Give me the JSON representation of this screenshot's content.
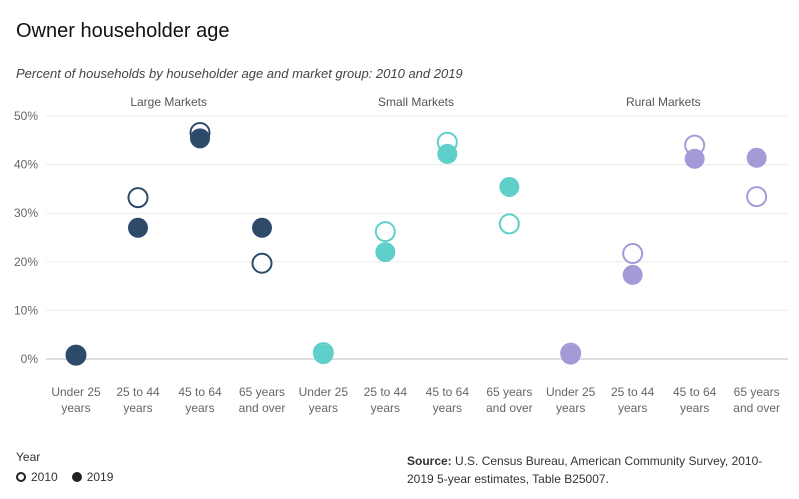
{
  "title": "Owner householder age",
  "subtitle": "Percent of households by householder age and market group: 2010 and 2019",
  "legend": {
    "title": "Year",
    "items": [
      "2010",
      "2019"
    ]
  },
  "source": {
    "label": "Source:",
    "text": "U.S. Census Bureau, American Community Survey, 2010-2019 5-year estimates, Table B25007."
  },
  "chart_data": {
    "type": "scatter",
    "ylim": [
      0,
      50
    ],
    "yticks": [
      "0%",
      "10%",
      "20%",
      "30%",
      "40%",
      "50%"
    ],
    "ytick_values": [
      0,
      10,
      20,
      30,
      40,
      50
    ],
    "grid": "horizontal",
    "legend_position": "bottom-left",
    "colors": {
      "Large Markets": "#2e4a6b",
      "Small Markets": "#5fcfca",
      "Rural Markets": "#a59ad8"
    },
    "categories": [
      [
        "Under 25",
        "years"
      ],
      [
        "25 to 44",
        "years"
      ],
      [
        "45 to 64",
        "years"
      ],
      [
        "65 years",
        "and over"
      ]
    ],
    "panels": [
      {
        "name": "Large Markets",
        "series": [
          {
            "name": "2010",
            "values": [
              0.8,
              33.2,
              46.6,
              19.7
            ]
          },
          {
            "name": "2019",
            "values": [
              0.7,
              27.0,
              45.4,
              27.0
            ]
          }
        ]
      },
      {
        "name": "Small Markets",
        "series": [
          {
            "name": "2010",
            "values": [
              1.3,
              26.2,
              44.6,
              27.8
            ]
          },
          {
            "name": "2019",
            "values": [
              1.0,
              22.0,
              42.2,
              35.4
            ]
          }
        ]
      },
      {
        "name": "Rural Markets",
        "series": [
          {
            "name": "2010",
            "values": [
              1.2,
              21.7,
              44.0,
              33.4
            ]
          },
          {
            "name": "2019",
            "values": [
              0.9,
              17.3,
              41.2,
              41.4
            ]
          }
        ]
      }
    ]
  }
}
